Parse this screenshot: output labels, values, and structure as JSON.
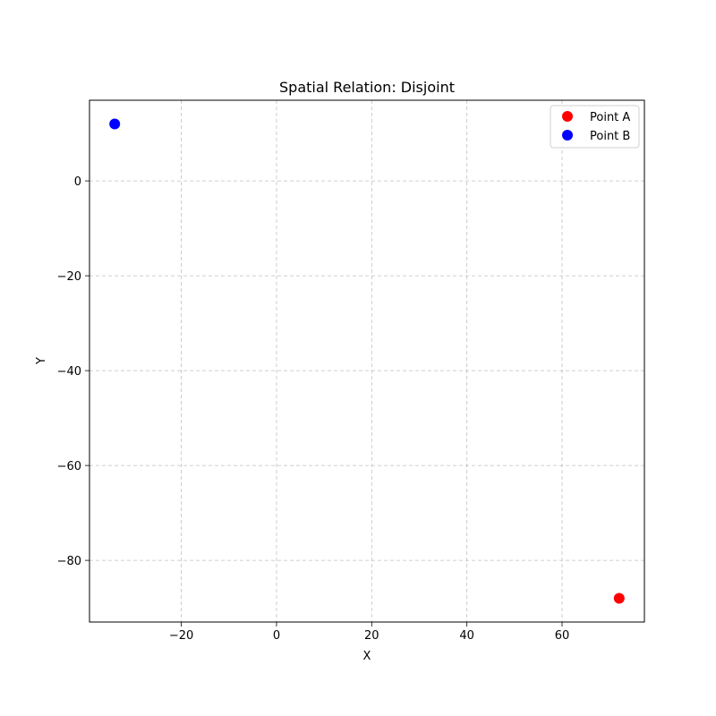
{
  "chart_data": {
    "type": "scatter",
    "title": "Spatial Relation: Disjoint",
    "xlabel": "X",
    "ylabel": "Y",
    "xlim": [
      -39.3,
      77.3
    ],
    "ylim": [
      -93.0,
      17.0
    ],
    "xticks": [
      -20,
      0,
      20,
      40,
      60
    ],
    "yticks": [
      0,
      -20,
      -40,
      -60,
      -80
    ],
    "grid": true,
    "legend_position": "top-right",
    "series": [
      {
        "name": "Point A",
        "color": "#ff0000",
        "x": [
          72
        ],
        "y": [
          -88
        ]
      },
      {
        "name": "Point B",
        "color": "#0000ff",
        "x": [
          -34
        ],
        "y": [
          12
        ]
      }
    ]
  }
}
